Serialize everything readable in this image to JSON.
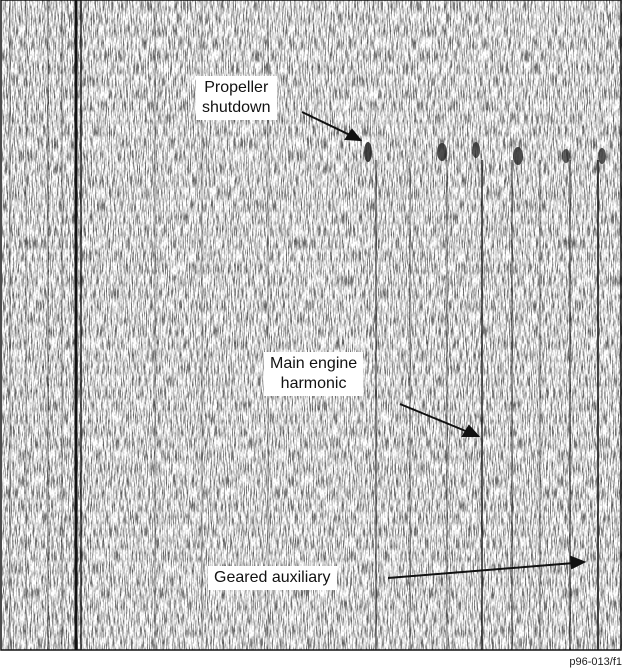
{
  "annotations": {
    "propeller_shutdown": {
      "line1": "Propeller",
      "line2": "shutdown"
    },
    "main_engine_harmonic": {
      "line1": "Main engine",
      "line2": "harmonic"
    },
    "geared_auxiliary": {
      "line1": "Geared auxiliary"
    }
  },
  "credit": "p96-013/f1",
  "colors": {
    "ink": "#111111",
    "paper": "#ffffff"
  }
}
